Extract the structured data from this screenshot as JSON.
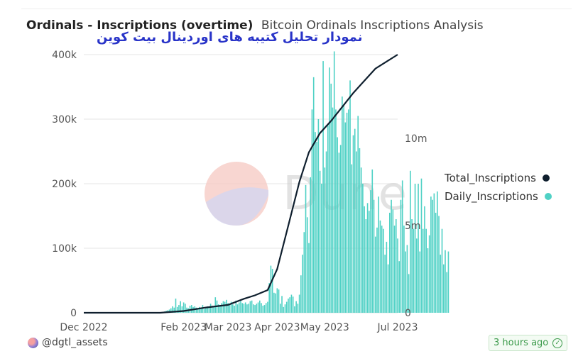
{
  "header": {
    "title": "Ordinals - Inscriptions (overtime)",
    "subtitle": "Bitcoin Ordinals Inscriptions Analysis",
    "overlay_text": "نمودار تحلیل کتیبه های اوردینال بیت کوین"
  },
  "watermark": "Dune",
  "footer": {
    "user": "@dgtl_assets",
    "updated": "3 hours ago",
    "check_icon": "check-circle-icon"
  },
  "colors": {
    "daily": "#4fd1c5",
    "total": "#0f1f2e",
    "accent_blue": "#2833c8",
    "badge_green": "#3b9a4a"
  },
  "chart_data": {
    "type": "bar+line",
    "x_labels": [
      "Dec 2022",
      "Feb 2023",
      "Mar 2023",
      "Apr 2023",
      "May 2023",
      "Jul 2023"
    ],
    "y_left": {
      "ticks": [
        "0",
        "100k",
        "200k",
        "300k",
        "400k"
      ],
      "range": [
        0,
        400000
      ]
    },
    "y_right": {
      "ticks": [
        "0",
        "5m",
        "10m"
      ],
      "range": [
        0,
        14800000
      ]
    },
    "legend": [
      {
        "name": "Total_Inscriptions",
        "color": "#0f1f2e"
      },
      {
        "name": "Daily_Inscriptions",
        "color": "#4fd1c5"
      }
    ],
    "legend_position": "right",
    "grid": "horizontal",
    "series": [
      {
        "name": "Daily_Inscriptions",
        "axis": "left",
        "start_date": "2022-12-14",
        "values": [
          0,
          0,
          0,
          0,
          0,
          0,
          0,
          0,
          0,
          0,
          0,
          0,
          0,
          0,
          0,
          0,
          0,
          0,
          0,
          0,
          0,
          0,
          0,
          0,
          0,
          0,
          0,
          0,
          0,
          0,
          0,
          0,
          0,
          0,
          0,
          0,
          0,
          0,
          0,
          0,
          0,
          0,
          0,
          0,
          0,
          0,
          0,
          0,
          0,
          0,
          1000,
          2000,
          3000,
          4000,
          5000,
          7000,
          10000,
          8000,
          22000,
          9000,
          12000,
          18000,
          10000,
          16000,
          14000,
          8000,
          7000,
          11000,
          12000,
          9000,
          10000,
          8000,
          6000,
          9000,
          7000,
          12000,
          6000,
          8000,
          10000,
          9000,
          14000,
          11000,
          9000,
          24000,
          19000,
          13000,
          10000,
          15000,
          18000,
          17000,
          20000,
          15000,
          12000,
          17000,
          13000,
          11000,
          19000,
          13000,
          16000,
          18000,
          15000,
          14000,
          16000,
          13000,
          14000,
          18000,
          19000,
          13000,
          12000,
          14000,
          16000,
          19000,
          15000,
          11000,
          12000,
          15000,
          17000,
          46000,
          73000,
          68000,
          31000,
          30000,
          38000,
          36000,
          14000,
          26000,
          9000,
          13000,
          17000,
          22000,
          24000,
          28000,
          25000,
          10000,
          18000,
          14000,
          28000,
          58000,
          90000,
          125000,
          198000,
          148000,
          108000,
          210000,
          315000,
          365000,
          280000,
          265000,
          300000,
          220000,
          200000,
          390000,
          225000,
          250000,
          290000,
          380000,
          355000,
          318000,
          405000,
          315000,
          272000,
          248000,
          260000,
          335000,
          322000,
          295000,
          310000,
          315000,
          360000,
          230000,
          275000,
          285000,
          250000,
          305000,
          255000,
          225000,
          200000,
          165000,
          145000,
          170000,
          158000,
          190000,
          222000,
          175000,
          118000,
          132000,
          180000,
          143000,
          135000,
          130000,
          90000,
          110000,
          75000,
          155000,
          175000,
          160000,
          135000,
          145000,
          115000,
          80000,
          175000,
          205000,
          135000,
          95000,
          105000,
          60000,
          220000,
          145000,
          130000,
          200000,
          115000,
          200000,
          95000,
          208000,
          130000,
          165000,
          130000,
          100000,
          120000,
          180000,
          175000,
          185000,
          155000,
          188000,
          150000,
          90000,
          130000,
          75000,
          97000,
          63000,
          95000
        ]
      },
      {
        "name": "Total_Inscriptions",
        "axis": "right",
        "points": [
          [
            "2022-12-14",
            0
          ],
          [
            "2023-01-31",
            0
          ],
          [
            "2023-02-15",
            100000
          ],
          [
            "2023-03-01",
            300000
          ],
          [
            "2023-03-15",
            450000
          ],
          [
            "2023-03-25",
            800000
          ],
          [
            "2023-04-01",
            1000000
          ],
          [
            "2023-04-09",
            1300000
          ],
          [
            "2023-04-15",
            2500000
          ],
          [
            "2023-04-22",
            5000000
          ],
          [
            "2023-04-29",
            7500000
          ],
          [
            "2023-05-05",
            9200000
          ],
          [
            "2023-05-12",
            10300000
          ],
          [
            "2023-05-19",
            11000000
          ],
          [
            "2023-05-26",
            11800000
          ],
          [
            "2023-06-02",
            12600000
          ],
          [
            "2023-06-09",
            13300000
          ],
          [
            "2023-06-16",
            14000000
          ],
          [
            "2023-06-23",
            14400000
          ],
          [
            "2023-06-30",
            14800000
          ]
        ]
      }
    ]
  }
}
